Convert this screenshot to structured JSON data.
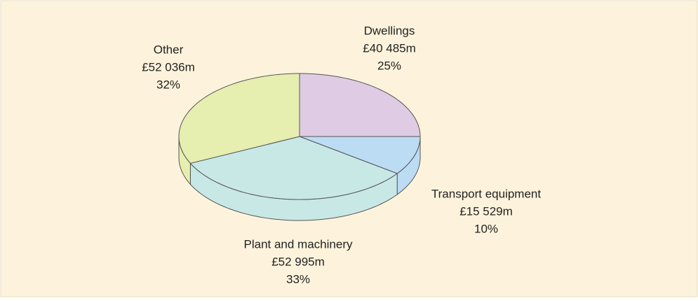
{
  "chart_data": {
    "type": "pie",
    "categories": [
      "Dwellings",
      "Transport equipment",
      "Plant and machinery",
      "Other"
    ],
    "values": [
      25,
      10,
      33,
      32
    ],
    "value_labels": [
      "25%",
      "10%",
      "33%",
      "32%"
    ],
    "amount_labels": [
      "£40 485m",
      "£15 529m",
      "£52 995m",
      "£52 036m"
    ],
    "colors": [
      "#dfcce4",
      "#bcdcf4",
      "#c8e8e6",
      "#e6eeb0"
    ]
  }
}
